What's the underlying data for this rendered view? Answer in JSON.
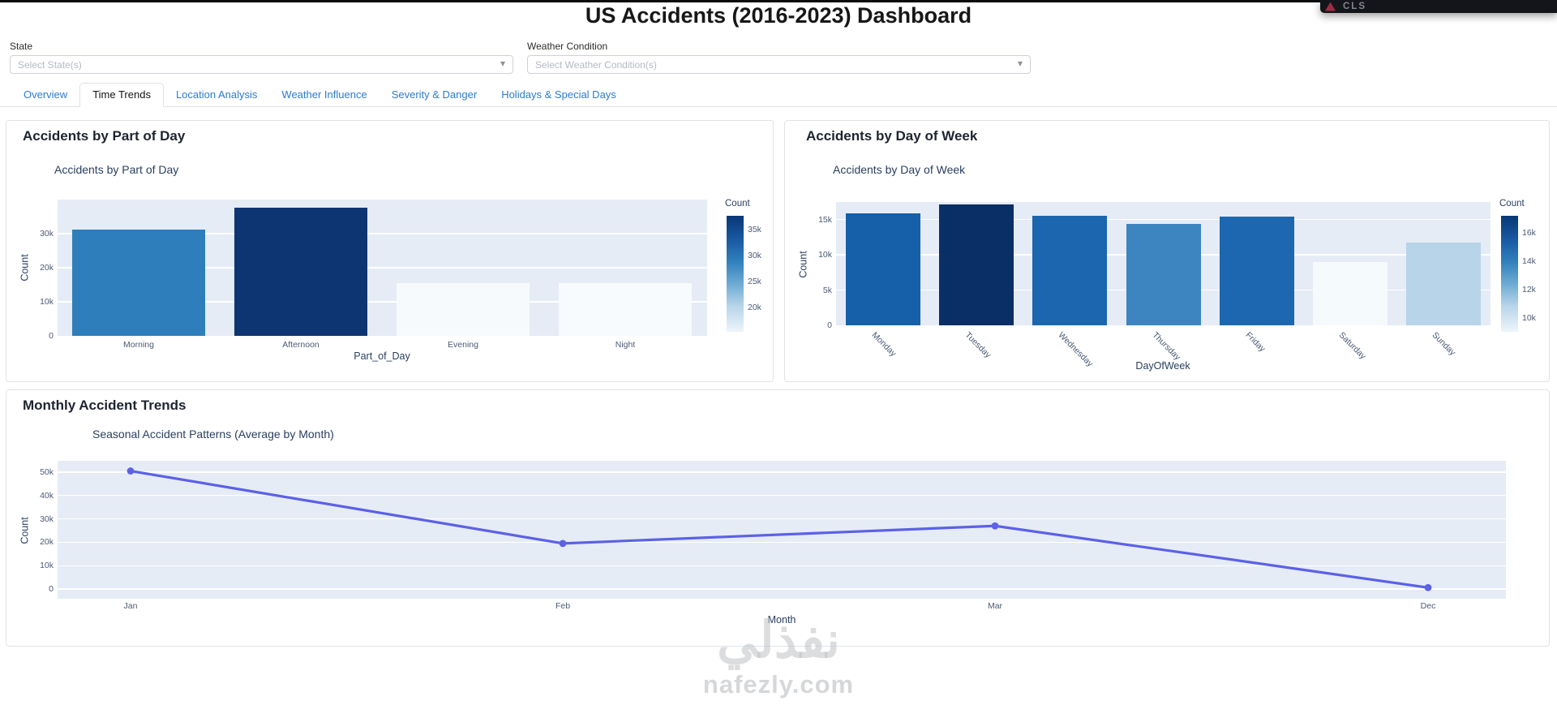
{
  "overlay": {
    "label": "CLS"
  },
  "header": {
    "title": "US Accidents (2016-2023) Dashboard"
  },
  "filters": {
    "state": {
      "label": "State",
      "placeholder": "Select State(s)"
    },
    "weather": {
      "label": "Weather Condition",
      "placeholder": "Select Weather Condition(s)"
    }
  },
  "tabs": [
    {
      "label": "Overview",
      "active": false
    },
    {
      "label": "Time Trends",
      "active": true
    },
    {
      "label": "Location Analysis",
      "active": false
    },
    {
      "label": "Weather Influence",
      "active": false
    },
    {
      "label": "Severity & Danger",
      "active": false
    },
    {
      "label": "Holidays & Special Days",
      "active": false
    }
  ],
  "cards": [
    {
      "title": "Accidents by Part of Day"
    },
    {
      "title": "Accidents by Day of Week"
    },
    {
      "title": "Monthly Accident Trends"
    }
  ],
  "chart_data": [
    {
      "type": "bar",
      "title": "Accidents by Part of Day",
      "categories": [
        "Morning",
        "Afternoon",
        "Evening",
        "Night"
      ],
      "values": [
        31200,
        37600,
        15500,
        15400
      ],
      "colors": [
        "#2e7ebc",
        "#0d3571",
        "#f6fafd",
        "#f7fbfd"
      ],
      "xlabel": "Part_of_Day",
      "ylabel": "Count",
      "ylim": [
        0,
        40000
      ],
      "yticks": [
        {
          "v": 0,
          "label": "0"
        },
        {
          "v": 10000,
          "label": "10k"
        },
        {
          "v": 20000,
          "label": "20k"
        },
        {
          "v": 30000,
          "label": "30k"
        }
      ],
      "colorbar": {
        "title": "Count",
        "ticks": [
          {
            "v": 35000,
            "label": "35k"
          },
          {
            "v": 30000,
            "label": "30k"
          },
          {
            "v": 25000,
            "label": "25k"
          },
          {
            "v": 20000,
            "label": "20k"
          }
        ]
      }
    },
    {
      "type": "bar",
      "title": "Accidents by Day of Week",
      "categories": [
        "Monday",
        "Tuesday",
        "Wednesday",
        "Thursday",
        "Friday",
        "Saturday",
        "Sunday"
      ],
      "values": [
        15900,
        17200,
        15500,
        14400,
        15400,
        9000,
        11700
      ],
      "colors": [
        "#1560a8",
        "#0a2e66",
        "#1b66ae",
        "#3c85c1",
        "#1c67af",
        "#f5fafd",
        "#b7d4e9"
      ],
      "xlabel": "DayOfWeek",
      "ylabel": "Count",
      "ylim": [
        0,
        17500
      ],
      "yticks": [
        {
          "v": 0,
          "label": "0"
        },
        {
          "v": 5000,
          "label": "5k"
        },
        {
          "v": 10000,
          "label": "10k"
        },
        {
          "v": 15000,
          "label": "15k"
        }
      ],
      "colorbar": {
        "title": "Count",
        "ticks": [
          {
            "v": 16000,
            "label": "16k"
          },
          {
            "v": 14000,
            "label": "14k"
          },
          {
            "v": 12000,
            "label": "12k"
          },
          {
            "v": 10000,
            "label": "10k"
          }
        ]
      }
    },
    {
      "type": "line",
      "title": "Seasonal Accident Patterns (Average by Month)",
      "categories": [
        "Jan",
        "Feb",
        "Mar",
        "Dec"
      ],
      "values": [
        50500,
        19500,
        27000,
        600
      ],
      "line_color": "#5c61e6",
      "xlabel": "Month",
      "ylabel": "Count",
      "ylim": [
        -4200,
        55000
      ],
      "yticks": [
        {
          "v": 0,
          "label": "0"
        },
        {
          "v": 10000,
          "label": "10k"
        },
        {
          "v": 20000,
          "label": "20k"
        },
        {
          "v": 30000,
          "label": "30k"
        },
        {
          "v": 40000,
          "label": "40k"
        },
        {
          "v": 50000,
          "label": "50k"
        }
      ]
    }
  ],
  "watermark": {
    "logo": "نفذلي",
    "text": "nafezly.com"
  }
}
